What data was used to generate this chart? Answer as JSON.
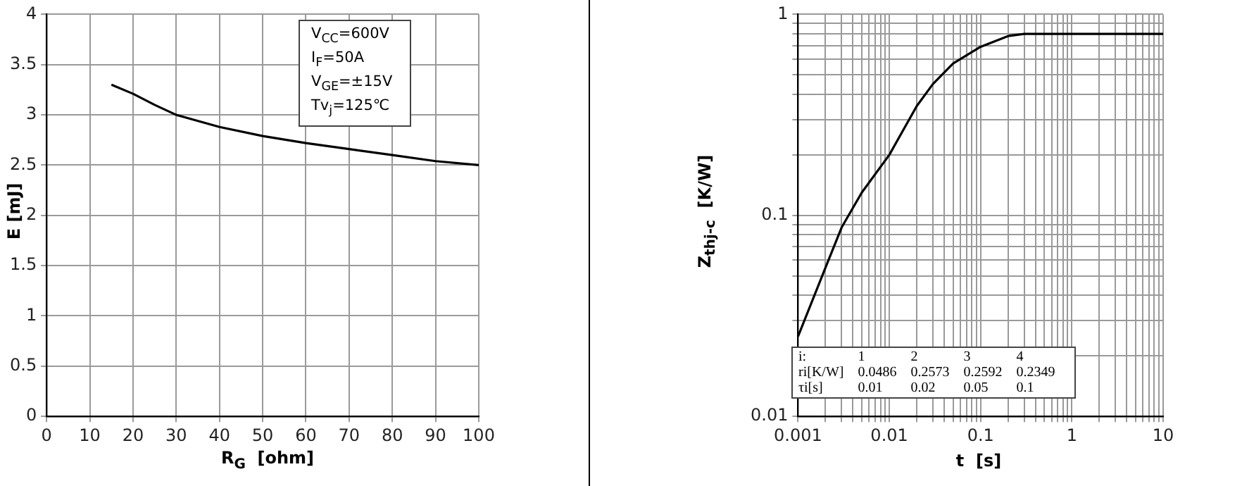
{
  "chart_data": [
    {
      "type": "line",
      "xlabel": "R$_{G}$  [ohm]",
      "ylabel": "E [mJ]",
      "annotations": [
        "V$_{CC}$=600V",
        "I$_{F}$=50A",
        "V$_{GE}$=±15V",
        "Tv$_{j}$=125℃"
      ],
      "x": [
        15,
        20,
        25,
        30,
        40,
        50,
        60,
        70,
        80,
        90,
        100
      ],
      "series": [
        {
          "color": "#000000",
          "values": [
            3.3,
            3.21,
            3.1,
            3.0,
            2.88,
            2.79,
            2.72,
            2.66,
            2.6,
            2.54,
            2.5
          ]
        }
      ],
      "xlim": [
        0,
        100
      ],
      "xticks": [
        0,
        10,
        20,
        30,
        40,
        50,
        60,
        70,
        80,
        90,
        100
      ],
      "ylim": [
        0,
        4
      ],
      "yticks": [
        0,
        0.5,
        1,
        1.5,
        2,
        2.5,
        3,
        3.5,
        4
      ],
      "grid": true,
      "legend": false,
      "marker": "none",
      "line_style": "solid"
    },
    {
      "type": "line",
      "xlabel": "t  [s]",
      "ylabel": "Z$_{thj-c}$  [K/W]",
      "log": "xy",
      "annotations": [
        "i: 1 2 3 4",
        "ri[K/W] 0.0486 0.2573 0.2592 0.2349",
        "τi[s] 0.01 0.02 0.05 0.1"
      ],
      "x": [
        0.001,
        0.002,
        0.003,
        0.005,
        0.01,
        0.02,
        0.03,
        0.05,
        0.1,
        0.2,
        0.3,
        1,
        10
      ],
      "series": [
        {
          "color": "#000000",
          "values": [
            0.025,
            0.055,
            0.087,
            0.13,
            0.2,
            0.35,
            0.45,
            0.57,
            0.69,
            0.78,
            0.8,
            0.8,
            0.8
          ]
        }
      ],
      "xlim": [
        0.001,
        10
      ],
      "xticks": [
        {
          "value": 0.001,
          "label": "0.001"
        },
        {
          "value": 0.002,
          "label": null
        },
        {
          "value": 0.003,
          "label": null
        },
        {
          "value": 0.004,
          "label": null
        },
        {
          "value": 0.005,
          "label": null
        },
        {
          "value": 0.006,
          "label": null
        },
        {
          "value": 0.007,
          "label": null
        },
        {
          "value": 0.008,
          "label": null
        },
        {
          "value": 0.009,
          "label": null
        },
        {
          "value": 0.01,
          "label": "0.01"
        },
        {
          "value": 0.02,
          "label": null
        },
        {
          "value": 0.03,
          "label": null
        },
        {
          "value": 0.04,
          "label": null
        },
        {
          "value": 0.05,
          "label": null
        },
        {
          "value": 0.06,
          "label": null
        },
        {
          "value": 0.07,
          "label": null
        },
        {
          "value": 0.08,
          "label": null
        },
        {
          "value": 0.09,
          "label": null
        },
        {
          "value": 0.1,
          "label": "0.1"
        },
        {
          "value": 0.2,
          "label": null
        },
        {
          "value": 0.3,
          "label": null
        },
        {
          "value": 0.4,
          "label": null
        },
        {
          "value": 0.5,
          "label": null
        },
        {
          "value": 0.6,
          "label": null
        },
        {
          "value": 0.7,
          "label": null
        },
        {
          "value": 0.8,
          "label": null
        },
        {
          "value": 0.9,
          "label": null
        },
        {
          "value": 1,
          "label": "1"
        },
        {
          "value": 2,
          "label": null
        },
        {
          "value": 3,
          "label": null
        },
        {
          "value": 4,
          "label": null
        },
        {
          "value": 5,
          "label": null
        },
        {
          "value": 6,
          "label": null
        },
        {
          "value": 7,
          "label": null
        },
        {
          "value": 8,
          "label": null
        },
        {
          "value": 9,
          "label": null
        },
        {
          "value": 10,
          "label": "10"
        }
      ],
      "ylim": [
        0.01,
        1
      ],
      "yticks": [
        {
          "value": 0.01,
          "label": "0.01"
        },
        {
          "value": 0.02,
          "label": null
        },
        {
          "value": 0.03,
          "label": null
        },
        {
          "value": 0.04,
          "label": null
        },
        {
          "value": 0.05,
          "label": null
        },
        {
          "value": 0.06,
          "label": null
        },
        {
          "value": 0.07,
          "label": null
        },
        {
          "value": 0.08,
          "label": null
        },
        {
          "value": 0.09,
          "label": null
        },
        {
          "value": 0.1,
          "label": "0.1"
        },
        {
          "value": 0.2,
          "label": null
        },
        {
          "value": 0.3,
          "label": null
        },
        {
          "value": 0.4,
          "label": null
        },
        {
          "value": 0.5,
          "label": null
        },
        {
          "value": 0.6,
          "label": null
        },
        {
          "value": 0.7,
          "label": null
        },
        {
          "value": 0.8,
          "label": null
        },
        {
          "value": 0.9,
          "label": null
        },
        {
          "value": 1,
          "label": "1"
        }
      ],
      "grid": true,
      "legend": false,
      "marker": "none",
      "line_style": "solid"
    }
  ]
}
